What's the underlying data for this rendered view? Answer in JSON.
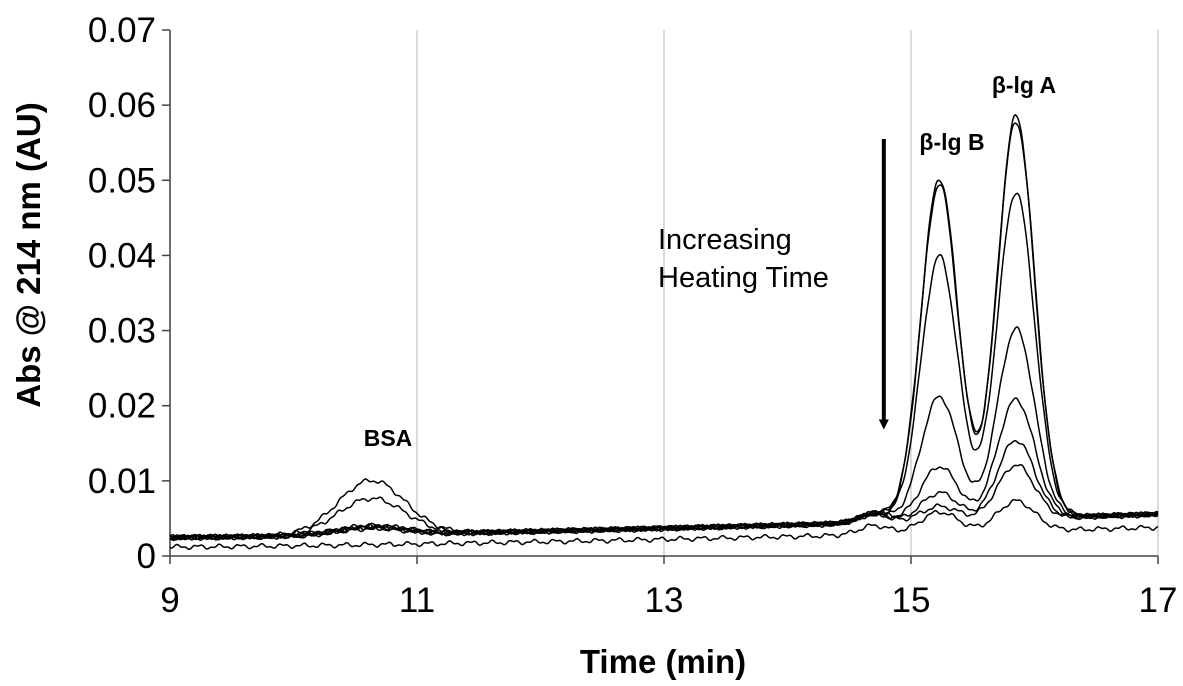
{
  "chart_data": {
    "type": "line",
    "xlabel": "Time (min)",
    "ylabel": "Abs @ 214 nm (AU)",
    "xlim": [
      9,
      17
    ],
    "ylim": [
      0,
      0.07
    ],
    "x_ticks": [
      "9",
      "11",
      "13",
      "15",
      "17"
    ],
    "y_ticks": [
      "0",
      "0.01",
      "0.02",
      "0.03",
      "0.04",
      "0.05",
      "0.06",
      "0.07"
    ],
    "grid": "vertical",
    "annotations": {
      "bsa": "BSA",
      "blg_b": "β-lg B",
      "blg_a": "β-lg A",
      "heating_line1": "Increasing",
      "heating_line2": "Heating Time"
    },
    "arrow": {
      "x": 14.78,
      "y_start": 0.0555,
      "y_end": 0.0175
    },
    "peaks": {
      "bsa": {
        "center": 10.63,
        "width": 0.27
      },
      "blg_b": {
        "center": 15.23,
        "width": 0.15
      },
      "blg_a": {
        "center": 15.85,
        "width": 0.15
      }
    },
    "series": [
      {
        "baseline": [
          0.0025,
          0.0056
        ],
        "bsa": 0.0072,
        "blg_b": 0.0455,
        "blg_a": 0.0535
      },
      {
        "baseline": [
          0.0025,
          0.0056
        ],
        "bsa": 0.0048,
        "blg_b": 0.0448,
        "blg_a": 0.0528
      },
      {
        "baseline": [
          0.0025,
          0.0056
        ],
        "bsa": 0.0012,
        "blg_b": 0.0352,
        "blg_a": 0.0434
      },
      {
        "baseline": [
          0.0025,
          0.0056
        ],
        "bsa": 0.0011,
        "blg_b": 0.0165,
        "blg_a": 0.0252
      },
      {
        "baseline": [
          0.0025,
          0.0056
        ],
        "bsa": 0.001,
        "blg_b": 0.0072,
        "blg_a": 0.0158
      },
      {
        "baseline": [
          0.0024,
          0.0055
        ],
        "bsa": 0.001,
        "blg_b": 0.0038,
        "blg_a": 0.0105
      },
      {
        "baseline": [
          0.0024,
          0.0055
        ],
        "bsa": 0.0009,
        "blg_b": 0.002,
        "blg_a": 0.0072
      },
      {
        "baseline": [
          0.0012,
          0.0038
        ],
        "bsa": 0.0,
        "blg_b": 0.0028,
        "blg_a": 0.004
      }
    ]
  }
}
